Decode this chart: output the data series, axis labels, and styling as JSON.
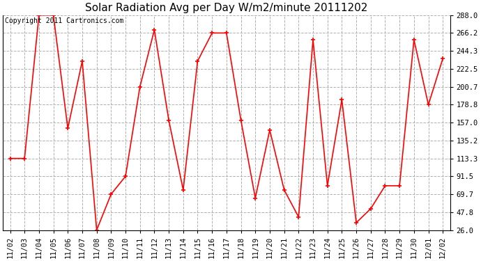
{
  "title": "Solar Radiation Avg per Day W/m2/minute 20111202",
  "copyright_text": "Copyright 2011 Cartronics.com",
  "x_labels": [
    "11/02",
    "11/03",
    "11/04",
    "11/05",
    "11/06",
    "11/07",
    "11/08",
    "11/09",
    "11/10",
    "11/11",
    "11/12",
    "11/13",
    "11/14",
    "11/15",
    "11/16",
    "11/17",
    "11/18",
    "11/19",
    "11/20",
    "11/21",
    "11/22",
    "11/23",
    "11/24",
    "11/25",
    "11/26",
    "11/27",
    "11/28",
    "11/29",
    "11/30",
    "12/01",
    "12/02"
  ],
  "y_values": [
    113.3,
    113.3,
    288.0,
    288.0,
    150.0,
    232.0,
    26.0,
    69.7,
    91.5,
    200.7,
    270.0,
    160.0,
    75.0,
    232.0,
    266.2,
    266.2,
    160.0,
    65.0,
    148.0,
    75.0,
    42.0,
    258.0,
    80.0,
    185.0,
    35.0,
    52.0,
    80.0,
    80.0,
    258.0,
    178.8,
    235.0
  ],
  "y_min": 26.0,
  "y_max": 288.0,
  "y_ticks": [
    26.0,
    47.8,
    69.7,
    91.5,
    113.3,
    135.2,
    157.0,
    178.8,
    200.7,
    222.5,
    244.3,
    266.2,
    288.0
  ],
  "line_color": "#ff0000",
  "marker": "+",
  "marker_size": 5,
  "marker_lw": 1.2,
  "line_width": 1.2,
  "bg_color": "#ffffff",
  "plot_bg_color": "#ffffff",
  "grid_color": "#b0b0b0",
  "grid_style": "--",
  "title_fontsize": 11,
  "tick_fontsize": 7.5,
  "copyright_fontsize": 7
}
